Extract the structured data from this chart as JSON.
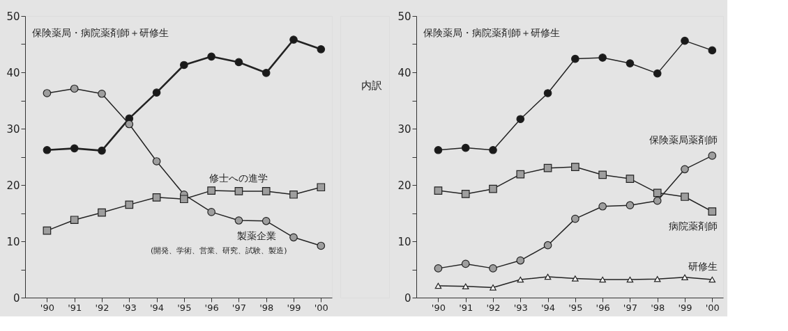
{
  "chart_data": [
    {
      "type": "line",
      "categories": [
        "'90",
        "'91",
        "'92",
        "'93",
        "'94",
        "'95",
        "'96",
        "'97",
        "'98",
        "'99",
        "'00"
      ],
      "ylim": [
        0,
        50
      ],
      "yticks": [
        0,
        {
          "value": 5,
          "label": null
        },
        10,
        {
          "value": 15,
          "label": null
        },
        20,
        {
          "value": 25,
          "label": null
        },
        30,
        {
          "value": 35,
          "label": null
        },
        40,
        {
          "value": 45,
          "label": null
        },
        50
      ],
      "grid": false,
      "annotations": [
        "(開発、学術、営業、研究、試験、製造)"
      ],
      "series": [
        {
          "name": "保険薬局・病院薬剤師＋研修生",
          "color": "#1a1a1a",
          "marker": "circle",
          "values": [
            26.2,
            26.5,
            26.1,
            31.8,
            36.4,
            41.3,
            42.8,
            41.8,
            39.9,
            45.8,
            44.1
          ]
        },
        {
          "name": "製薬企業",
          "color": "#9e9e9e",
          "marker": "circle",
          "values": [
            36.3,
            37.1,
            36.2,
            30.8,
            24.2,
            18.3,
            15.2,
            13.7,
            13.6,
            10.7,
            9.2
          ]
        },
        {
          "name": "修士への進学",
          "color": "#9e9e9e",
          "marker": "square",
          "values": [
            11.9,
            13.8,
            15.1,
            16.5,
            17.8,
            17.5,
            19.0,
            18.9,
            18.9,
            18.3,
            19.6
          ]
        }
      ]
    },
    {
      "type": "line",
      "categories": [
        "'90",
        "'91",
        "'92",
        "'93",
        "'94",
        "'95",
        "'96",
        "'97",
        "'98",
        "'99",
        "'00"
      ],
      "ylim": [
        0,
        50
      ],
      "yticks": [
        0,
        {
          "value": 5,
          "label": null
        },
        10,
        {
          "value": 15,
          "label": null
        },
        20,
        {
          "value": 25,
          "label": null
        },
        30,
        {
          "value": 35,
          "label": null
        },
        40,
        {
          "value": 45,
          "label": null
        },
        50
      ],
      "grid": false,
      "annotations": [
        "内訳"
      ],
      "series": [
        {
          "name": "保険薬局・病院薬剤師＋研修生",
          "color": "#1a1a1a",
          "marker": "circle",
          "values": [
            26.2,
            26.6,
            26.2,
            31.7,
            36.3,
            42.4,
            42.6,
            41.6,
            39.8,
            45.6,
            43.9
          ]
        },
        {
          "name": "保険薬局薬剤師",
          "color": "#9e9e9e",
          "marker": "circle",
          "values": [
            5.2,
            6.0,
            5.2,
            6.6,
            9.3,
            14.0,
            16.2,
            16.4,
            17.2,
            22.8,
            25.2
          ]
        },
        {
          "name": "病院薬剤師",
          "color": "#9e9e9e",
          "marker": "square",
          "values": [
            19.0,
            18.4,
            19.3,
            21.9,
            23.0,
            23.2,
            21.8,
            21.1,
            18.6,
            17.9,
            15.3
          ]
        },
        {
          "name": "研修生",
          "color": "#ffffff",
          "marker": "triangle",
          "values": [
            2.1,
            2.0,
            1.8,
            3.2,
            3.7,
            3.4,
            3.2,
            3.2,
            3.3,
            3.6,
            3.2
          ]
        }
      ]
    }
  ]
}
